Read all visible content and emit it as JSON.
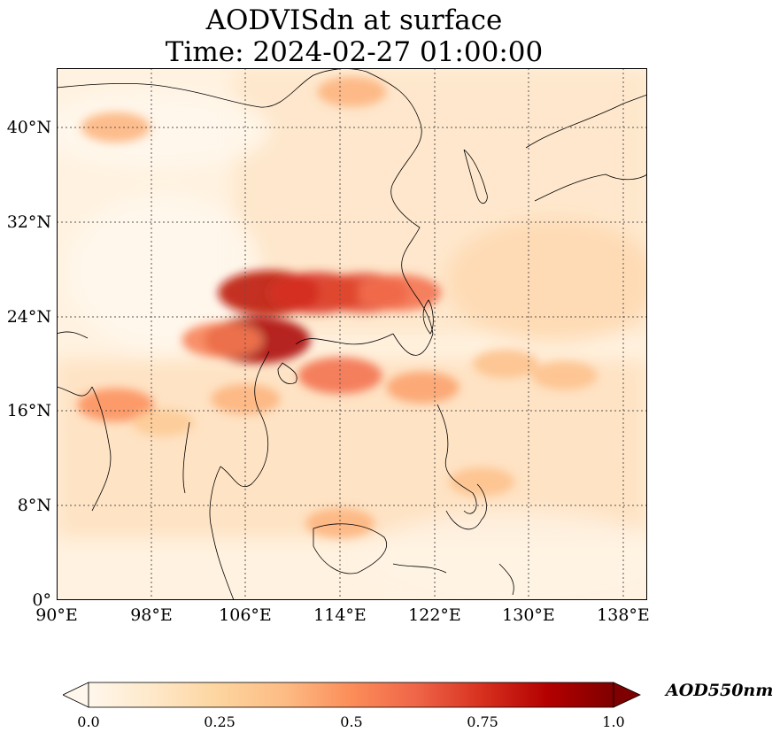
{
  "title_line1": "AODVISdn at surface",
  "title_line2": "Time: 2024-02-27 01:00:00",
  "colorbar": {
    "label": "AOD550nm",
    "ticks": [
      "0.0",
      "0.25",
      "0.5",
      "0.75",
      "1.0"
    ],
    "min": 0.0,
    "max": 1.0,
    "colormap": "OrRd",
    "extend": "both"
  },
  "map": {
    "lon_range": [
      90,
      140
    ],
    "lat_range": [
      0,
      45
    ],
    "lon_ticks": [
      "90°E",
      "98°E",
      "106°E",
      "114°E",
      "122°E",
      "130°E",
      "138°E"
    ],
    "lat_ticks": [
      "0°",
      "8°N",
      "16°N",
      "24°N",
      "32°N",
      "40°N"
    ],
    "gridlines": true
  },
  "chart_data": {
    "type": "heatmap",
    "variable": "AODVISdn",
    "units": "AOD550nm",
    "vmin": 0.0,
    "vmax": 1.0,
    "hotspots": [
      {
        "lon": 108,
        "lat": 26,
        "value": 0.85
      },
      {
        "lon": 107,
        "lat": 22,
        "value": 0.9
      },
      {
        "lon": 112,
        "lat": 26,
        "value": 0.75
      },
      {
        "lon": 116,
        "lat": 26,
        "value": 0.7
      },
      {
        "lon": 119,
        "lat": 26,
        "value": 0.6
      },
      {
        "lon": 114,
        "lat": 19,
        "value": 0.6
      },
      {
        "lon": 104,
        "lat": 22,
        "value": 0.55
      },
      {
        "lon": 95,
        "lat": 16.5,
        "value": 0.5
      },
      {
        "lon": 121,
        "lat": 18,
        "value": 0.45
      },
      {
        "lon": 128,
        "lat": 20,
        "value": 0.35
      },
      {
        "lon": 133,
        "lat": 19,
        "value": 0.35
      },
      {
        "lon": 95,
        "lat": 40,
        "value": 0.4
      },
      {
        "lon": 115,
        "lat": 43,
        "value": 0.4
      },
      {
        "lon": 126,
        "lat": 10,
        "value": 0.35
      },
      {
        "lon": 114,
        "lat": 6.5,
        "value": 0.4
      },
      {
        "lon": 106,
        "lat": 17,
        "value": 0.4
      },
      {
        "lon": 99,
        "lat": 15,
        "value": 0.3
      }
    ]
  }
}
